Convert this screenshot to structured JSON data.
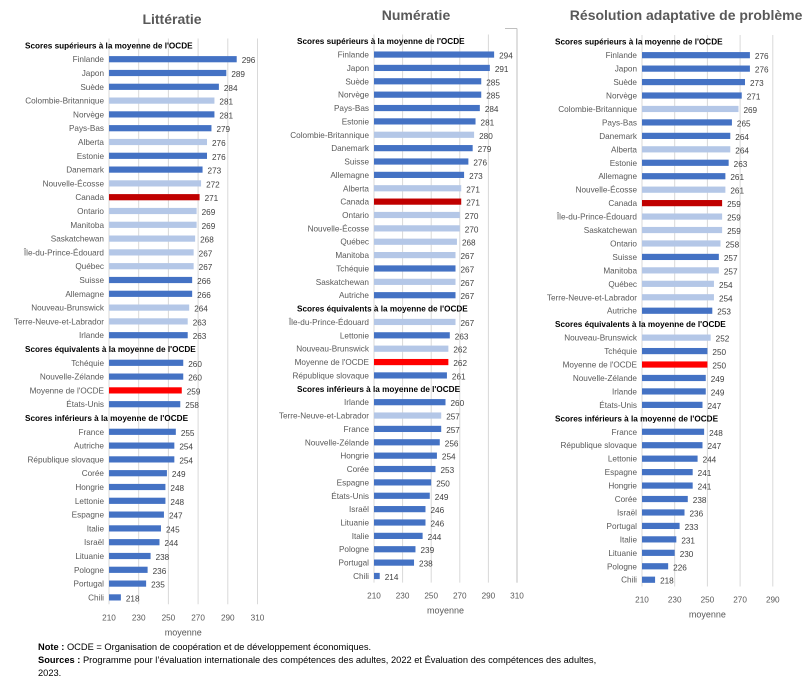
{
  "colors": {
    "country": "#4472C4",
    "province": "#B4C7E7",
    "canada": "#C00000",
    "oecd_average": "#FF0000",
    "gridline": "#D9D9D9"
  },
  "chart_data": [
    {
      "type": "bar",
      "orientation": "horizontal",
      "title": "Littératie",
      "xlabel": "moyenne",
      "xlim": [
        210,
        310
      ],
      "xticks": [
        210,
        230,
        250,
        270,
        290,
        310
      ],
      "grid": true,
      "groups": [
        {
          "header": "Scores supérieurs à la moyenne de l'OCDE",
          "bars": [
            {
              "label": "Finlande",
              "value": 296,
              "kind": "country"
            },
            {
              "label": "Japon",
              "value": 289,
              "kind": "country"
            },
            {
              "label": "Suède",
              "value": 284,
              "kind": "country"
            },
            {
              "label": "Colombie-Britannique",
              "value": 281,
              "kind": "province"
            },
            {
              "label": "Norvège",
              "value": 281,
              "kind": "country"
            },
            {
              "label": "Pays-Bas",
              "value": 279,
              "kind": "country"
            },
            {
              "label": "Alberta",
              "value": 276,
              "kind": "province"
            },
            {
              "label": "Estonie",
              "value": 276,
              "kind": "country"
            },
            {
              "label": "Danemark",
              "value": 273,
              "kind": "country"
            },
            {
              "label": "Nouvelle-Écosse",
              "value": 272,
              "kind": "province"
            },
            {
              "label": "Canada",
              "value": 271,
              "kind": "canada"
            },
            {
              "label": "Ontario",
              "value": 269,
              "kind": "province"
            },
            {
              "label": "Manitoba",
              "value": 269,
              "kind": "province"
            },
            {
              "label": "Saskatchewan",
              "value": 268,
              "kind": "province"
            },
            {
              "label": "Île-du-Prince-Édouard",
              "value": 267,
              "kind": "province"
            },
            {
              "label": "Québec",
              "value": 267,
              "kind": "province"
            },
            {
              "label": "Suisse",
              "value": 266,
              "kind": "country"
            },
            {
              "label": "Allemagne",
              "value": 266,
              "kind": "country"
            },
            {
              "label": "Nouveau-Brunswick",
              "value": 264,
              "kind": "province"
            },
            {
              "label": "Terre-Neuve-et-Labrador",
              "value": 263,
              "kind": "province"
            },
            {
              "label": "Irlande",
              "value": 263,
              "kind": "country"
            }
          ]
        },
        {
          "header": "Scores équivalents à la moyenne de l'OCDE",
          "bars": [
            {
              "label": "Tchéquie",
              "value": 260,
              "kind": "country"
            },
            {
              "label": "Nouvelle-Zélande",
              "value": 260,
              "kind": "country"
            },
            {
              "label": "Moyenne de l'OCDE",
              "value": 259,
              "kind": "oecd_average"
            },
            {
              "label": "États-Unis",
              "value": 258,
              "kind": "country"
            }
          ]
        },
        {
          "header": "Scores inférieurs à la moyenne de l'OCDE",
          "bars": [
            {
              "label": "France",
              "value": 255,
              "kind": "country"
            },
            {
              "label": "Autriche",
              "value": 254,
              "kind": "country"
            },
            {
              "label": "République slovaque",
              "value": 254,
              "kind": "country"
            },
            {
              "label": "Corée",
              "value": 249,
              "kind": "country"
            },
            {
              "label": "Hongrie",
              "value": 248,
              "kind": "country"
            },
            {
              "label": "Lettonie",
              "value": 248,
              "kind": "country"
            },
            {
              "label": "Espagne",
              "value": 247,
              "kind": "country"
            },
            {
              "label": "Italie",
              "value": 245,
              "kind": "country"
            },
            {
              "label": "Israël",
              "value": 244,
              "kind": "country"
            },
            {
              "label": "Lituanie",
              "value": 238,
              "kind": "country"
            },
            {
              "label": "Pologne",
              "value": 236,
              "kind": "country"
            },
            {
              "label": "Portugal",
              "value": 235,
              "kind": "country"
            },
            {
              "label": "Chili",
              "value": 218,
              "kind": "country"
            }
          ]
        }
      ]
    },
    {
      "type": "bar",
      "orientation": "horizontal",
      "title": "Numératie",
      "xlabel": "moyenne",
      "xlim": [
        210,
        310
      ],
      "xticks": [
        210,
        230,
        250,
        270,
        290,
        310
      ],
      "grid": true,
      "groups": [
        {
          "header": "Scores supérieurs à la moyenne de l'OCDE",
          "bars": [
            {
              "label": "Finlande",
              "value": 294,
              "kind": "country"
            },
            {
              "label": "Japon",
              "value": 291,
              "kind": "country"
            },
            {
              "label": "Suède",
              "value": 285,
              "kind": "country"
            },
            {
              "label": "Norvège",
              "value": 285,
              "kind": "country"
            },
            {
              "label": "Pays-Bas",
              "value": 284,
              "kind": "country"
            },
            {
              "label": "Estonie",
              "value": 281,
              "kind": "country"
            },
            {
              "label": "Colombie-Britannique",
              "value": 280,
              "kind": "province"
            },
            {
              "label": "Danemark",
              "value": 279,
              "kind": "country"
            },
            {
              "label": "Suisse",
              "value": 276,
              "kind": "country"
            },
            {
              "label": "Allemagne",
              "value": 273,
              "kind": "country"
            },
            {
              "label": "Alberta",
              "value": 271,
              "kind": "province"
            },
            {
              "label": "Canada",
              "value": 271,
              "kind": "canada"
            },
            {
              "label": "Ontario",
              "value": 270,
              "kind": "province"
            },
            {
              "label": "Nouvelle-Écosse",
              "value": 270,
              "kind": "province"
            },
            {
              "label": "Québec",
              "value": 268,
              "kind": "province"
            },
            {
              "label": "Manitoba",
              "value": 267,
              "kind": "province"
            },
            {
              "label": "Tchéquie",
              "value": 267,
              "kind": "country"
            },
            {
              "label": "Saskatchewan",
              "value": 267,
              "kind": "province"
            },
            {
              "label": "Autriche",
              "value": 267,
              "kind": "country"
            }
          ]
        },
        {
          "header": "Scores équivalents à la moyenne de l'OCDE",
          "bars": [
            {
              "label": "Île-du-Prince-Édouard",
              "value": 267,
              "kind": "province"
            },
            {
              "label": "Lettonie",
              "value": 263,
              "kind": "country"
            },
            {
              "label": "Nouveau-Brunswick",
              "value": 262,
              "kind": "province"
            },
            {
              "label": "Moyenne de l'OCDE",
              "value": 262,
              "kind": "oecd_average"
            },
            {
              "label": "République slovaque",
              "value": 261,
              "kind": "country"
            }
          ]
        },
        {
          "header": "Scores inférieurs à la moyenne de l'OCDE",
          "bars": [
            {
              "label": "Irlande",
              "value": 260,
              "kind": "country"
            },
            {
              "label": "Terre-Neuve-et-Labrador",
              "value": 257,
              "kind": "province"
            },
            {
              "label": "France",
              "value": 257,
              "kind": "country"
            },
            {
              "label": "Nouvelle-Zélande",
              "value": 256,
              "kind": "country"
            },
            {
              "label": "Hongrie",
              "value": 254,
              "kind": "country"
            },
            {
              "label": "Corée",
              "value": 253,
              "kind": "country"
            },
            {
              "label": "Espagne",
              "value": 250,
              "kind": "country"
            },
            {
              "label": "États-Unis",
              "value": 249,
              "kind": "country"
            },
            {
              "label": "Israël",
              "value": 246,
              "kind": "country"
            },
            {
              "label": "Lituanie",
              "value": 246,
              "kind": "country"
            },
            {
              "label": "Italie",
              "value": 244,
              "kind": "country"
            },
            {
              "label": "Pologne",
              "value": 239,
              "kind": "country"
            },
            {
              "label": "Portugal",
              "value": 238,
              "kind": "country"
            },
            {
              "label": "Chili",
              "value": 214,
              "kind": "country"
            }
          ]
        }
      ]
    },
    {
      "type": "bar",
      "orientation": "horizontal",
      "title": "Résolution adaptative de problèmes",
      "xlabel": "moyenne",
      "xlim": [
        210,
        290
      ],
      "xticks": [
        210,
        230,
        250,
        270,
        290
      ],
      "grid": true,
      "groups": [
        {
          "header": "Scores supérieurs à la moyenne de l'OCDE",
          "bars": [
            {
              "label": "Finlande",
              "value": 276,
              "kind": "country"
            },
            {
              "label": "Japon",
              "value": 276,
              "kind": "country"
            },
            {
              "label": "Suède",
              "value": 273,
              "kind": "country"
            },
            {
              "label": "Norvège",
              "value": 271,
              "kind": "country"
            },
            {
              "label": "Colombie-Britannique",
              "value": 269,
              "kind": "province"
            },
            {
              "label": "Pays-Bas",
              "value": 265,
              "kind": "country"
            },
            {
              "label": "Danemark",
              "value": 264,
              "kind": "country"
            },
            {
              "label": "Alberta",
              "value": 264,
              "kind": "province"
            },
            {
              "label": "Estonie",
              "value": 263,
              "kind": "country"
            },
            {
              "label": "Allemagne",
              "value": 261,
              "kind": "country"
            },
            {
              "label": "Nouvelle-Écosse",
              "value": 261,
              "kind": "province"
            },
            {
              "label": "Canada",
              "value": 259,
              "kind": "canada"
            },
            {
              "label": "Île-du-Prince-Édouard",
              "value": 259,
              "kind": "province"
            },
            {
              "label": "Saskatchewan",
              "value": 259,
              "kind": "province"
            },
            {
              "label": "Ontario",
              "value": 258,
              "kind": "province"
            },
            {
              "label": "Suisse",
              "value": 257,
              "kind": "country"
            },
            {
              "label": "Manitoba",
              "value": 257,
              "kind": "province"
            },
            {
              "label": "Québec",
              "value": 254,
              "kind": "province"
            },
            {
              "label": "Terre-Neuve-et-Labrador",
              "value": 254,
              "kind": "province"
            },
            {
              "label": "Autriche",
              "value": 253,
              "kind": "country"
            }
          ]
        },
        {
          "header": "Scores équivalents à la moyenne de l'OCDE",
          "bars": [
            {
              "label": "Nouveau-Brunswick",
              "value": 252,
              "kind": "province"
            },
            {
              "label": "Tchéquie",
              "value": 250,
              "kind": "country"
            },
            {
              "label": "Moyenne de l'OCDE",
              "value": 250,
              "kind": "oecd_average"
            },
            {
              "label": "Nouvelle-Zélande",
              "value": 249,
              "kind": "country"
            },
            {
              "label": "Irlande",
              "value": 249,
              "kind": "country"
            },
            {
              "label": "États-Unis",
              "value": 247,
              "kind": "country"
            }
          ]
        },
        {
          "header": "Scores inférieurs à la moyenne de l'OCDE",
          "bars": [
            {
              "label": "France",
              "value": 248,
              "kind": "country"
            },
            {
              "label": "République slovaque",
              "value": 247,
              "kind": "country"
            },
            {
              "label": "Lettonie",
              "value": 244,
              "kind": "country"
            },
            {
              "label": "Espagne",
              "value": 241,
              "kind": "country"
            },
            {
              "label": "Hongrie",
              "value": 241,
              "kind": "country"
            },
            {
              "label": "Corée",
              "value": 238,
              "kind": "country"
            },
            {
              "label": "Israël",
              "value": 236,
              "kind": "country"
            },
            {
              "label": "Portugal",
              "value": 233,
              "kind": "country"
            },
            {
              "label": "Italie",
              "value": 231,
              "kind": "country"
            },
            {
              "label": "Lituanie",
              "value": 230,
              "kind": "country"
            },
            {
              "label": "Pologne",
              "value": 226,
              "kind": "country"
            },
            {
              "label": "Chili",
              "value": 218,
              "kind": "country"
            }
          ]
        }
      ]
    }
  ],
  "footer": {
    "note_label": "Note :",
    "note_text": "OCDE =  Organisation de coopération et de développement économiques.",
    "sources_label": "Sources :",
    "sources_text": "Programme pour l’évaluation internationale des compétences des adultes, 2022 et Évaluation des compétences des adultes, 2023."
  }
}
